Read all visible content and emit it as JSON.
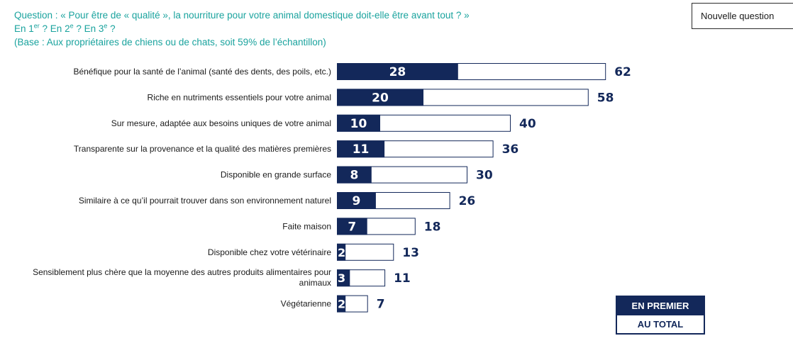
{
  "header": {
    "question_line1": "Question : « Pour être de « qualité », la nourriture pour votre animal domestique doit-elle être avant tout ? »",
    "rank_1": "En 1",
    "rank_1_sup": "er",
    "rank_2": " ? En 2",
    "rank_2_sup": "e",
    "rank_3": " ? En 3",
    "rank_3_sup": "e",
    "rank_end": " ?",
    "base": "(Base : Aux propriétaires de chiens ou de chats, soit 59% de l’échantillon)"
  },
  "new_question_button": "Nouvelle question",
  "legend": {
    "first": "EN PREMIER",
    "total": "AU TOTAL"
  },
  "colors": {
    "first": "#13285a",
    "total_fill": "#ffffff",
    "total_border": "#13285a",
    "question_text": "#1aa39e"
  },
  "chart_data": {
    "type": "bar",
    "orientation": "horizontal",
    "stacked_overlay": true,
    "categories": [
      "Bénéfique pour la santé de l’animal (santé des dents, des poils, etc.)",
      "Riche en nutriments essentiels pour votre animal",
      "Sur mesure, adaptée aux besoins uniques de votre animal",
      "Transparente sur la provenance et la qualité des matières premières",
      "Disponible en grande surface",
      "Similaire à ce qu’il pourrait trouver dans son environnement naturel",
      "Faite maison",
      "Disponible chez votre vétérinaire",
      "Sensiblement plus chère que la moyenne des autres produits alimentaires pour animaux",
      "Végétarienne"
    ],
    "series": [
      {
        "name": "EN PREMIER",
        "values": [
          28,
          20,
          10,
          11,
          8,
          9,
          7,
          2,
          3,
          2
        ]
      },
      {
        "name": "AU TOTAL",
        "values": [
          62,
          58,
          40,
          36,
          30,
          26,
          18,
          13,
          11,
          7
        ]
      }
    ],
    "xlim": [
      0,
      62
    ],
    "grid": false,
    "legend_position": "bottom-right"
  }
}
